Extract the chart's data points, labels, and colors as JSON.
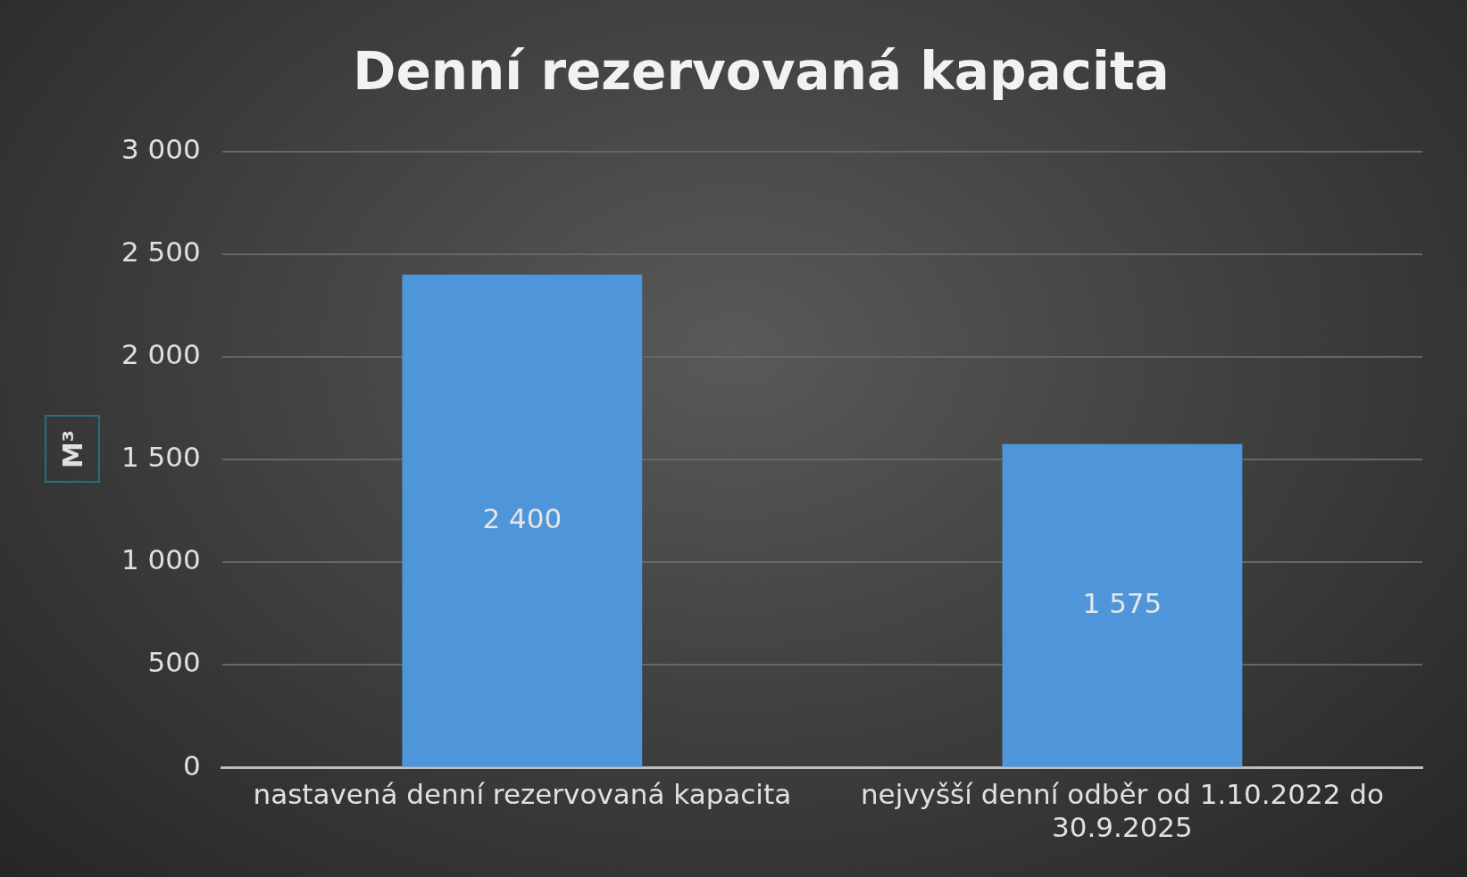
{
  "chart_data": {
    "type": "bar",
    "title": "Denní rezervovaná kapacita",
    "ylabel": "M³",
    "categories": [
      "nastavená denní rezervovaná kapacita",
      "nejvyšší denní odběr od 1.10.2022 do 30.9.2025"
    ],
    "values": [
      2400,
      1575
    ],
    "value_labels": [
      "2 400",
      "1 575"
    ],
    "color": "#4f95d9",
    "ylim": [
      0,
      3000
    ],
    "yticks": [
      {
        "value": 0,
        "label": "0"
      },
      {
        "value": 500,
        "label": "500"
      },
      {
        "value": 1000,
        "label": "1 000"
      },
      {
        "value": 1500,
        "label": "1 500"
      },
      {
        "value": 2000,
        "label": "2 000"
      },
      {
        "value": 2500,
        "label": "2 500"
      },
      {
        "value": 3000,
        "label": "3 000"
      }
    ],
    "grid": "y",
    "legend": false
  }
}
